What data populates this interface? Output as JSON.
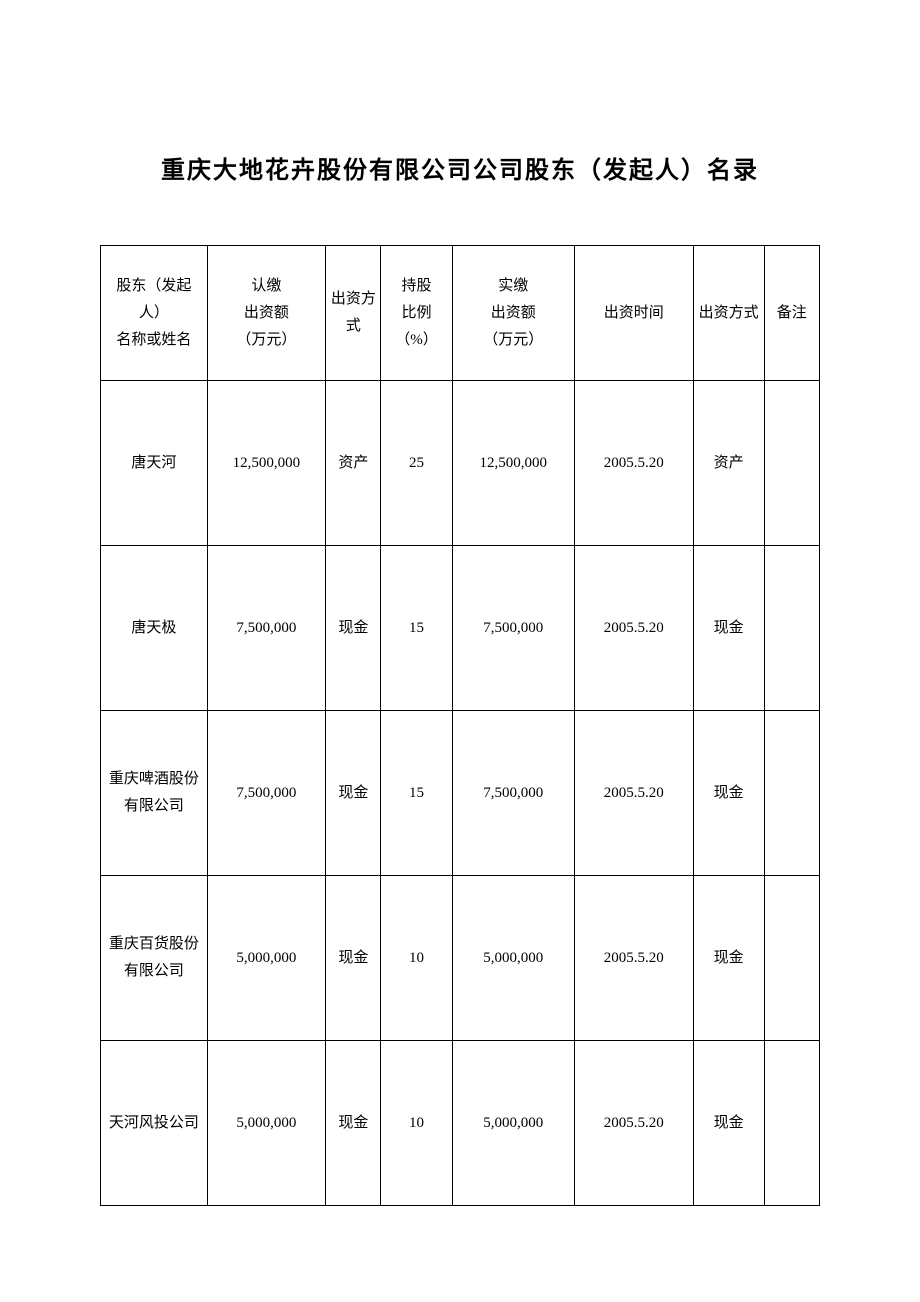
{
  "document": {
    "title": "重庆大地花卉股份有限公司公司股东（发起人）名录"
  },
  "table": {
    "columns": [
      {
        "header": "股东（发起人）\n名称或姓名"
      },
      {
        "header": "认缴\n出资额\n（万元）"
      },
      {
        "header": "出资方式"
      },
      {
        "header": "持股\n比例\n（%）"
      },
      {
        "header": "实缴\n出资额\n（万元）"
      },
      {
        "header": "出资时间"
      },
      {
        "header": "出资方式"
      },
      {
        "header": "备注"
      }
    ],
    "rows": [
      {
        "name": "唐天河",
        "subscribed": "12,500,000",
        "method1": "资产",
        "ratio": "25",
        "paid": "12,500,000",
        "date": "2005.5.20",
        "method2": "资产",
        "remark": ""
      },
      {
        "name": "唐天极",
        "subscribed": "7,500,000",
        "method1": "现金",
        "ratio": "15",
        "paid": "7,500,000",
        "date": "2005.5.20",
        "method2": "现金",
        "remark": ""
      },
      {
        "name": "重庆啤酒股份有限公司",
        "subscribed": "7,500,000",
        "method1": "现金",
        "ratio": "15",
        "paid": "7,500,000",
        "date": "2005.5.20",
        "method2": "现金",
        "remark": ""
      },
      {
        "name": "重庆百货股份有限公司",
        "subscribed": "5,000,000",
        "method1": "现金",
        "ratio": "10",
        "paid": "5,000,000",
        "date": "2005.5.20",
        "method2": "现金",
        "remark": ""
      },
      {
        "name": "天河风投公司",
        "subscribed": "5,000,000",
        "method1": "现金",
        "ratio": "10",
        "paid": "5,000,000",
        "date": "2005.5.20",
        "method2": "现金",
        "remark": ""
      }
    ]
  }
}
